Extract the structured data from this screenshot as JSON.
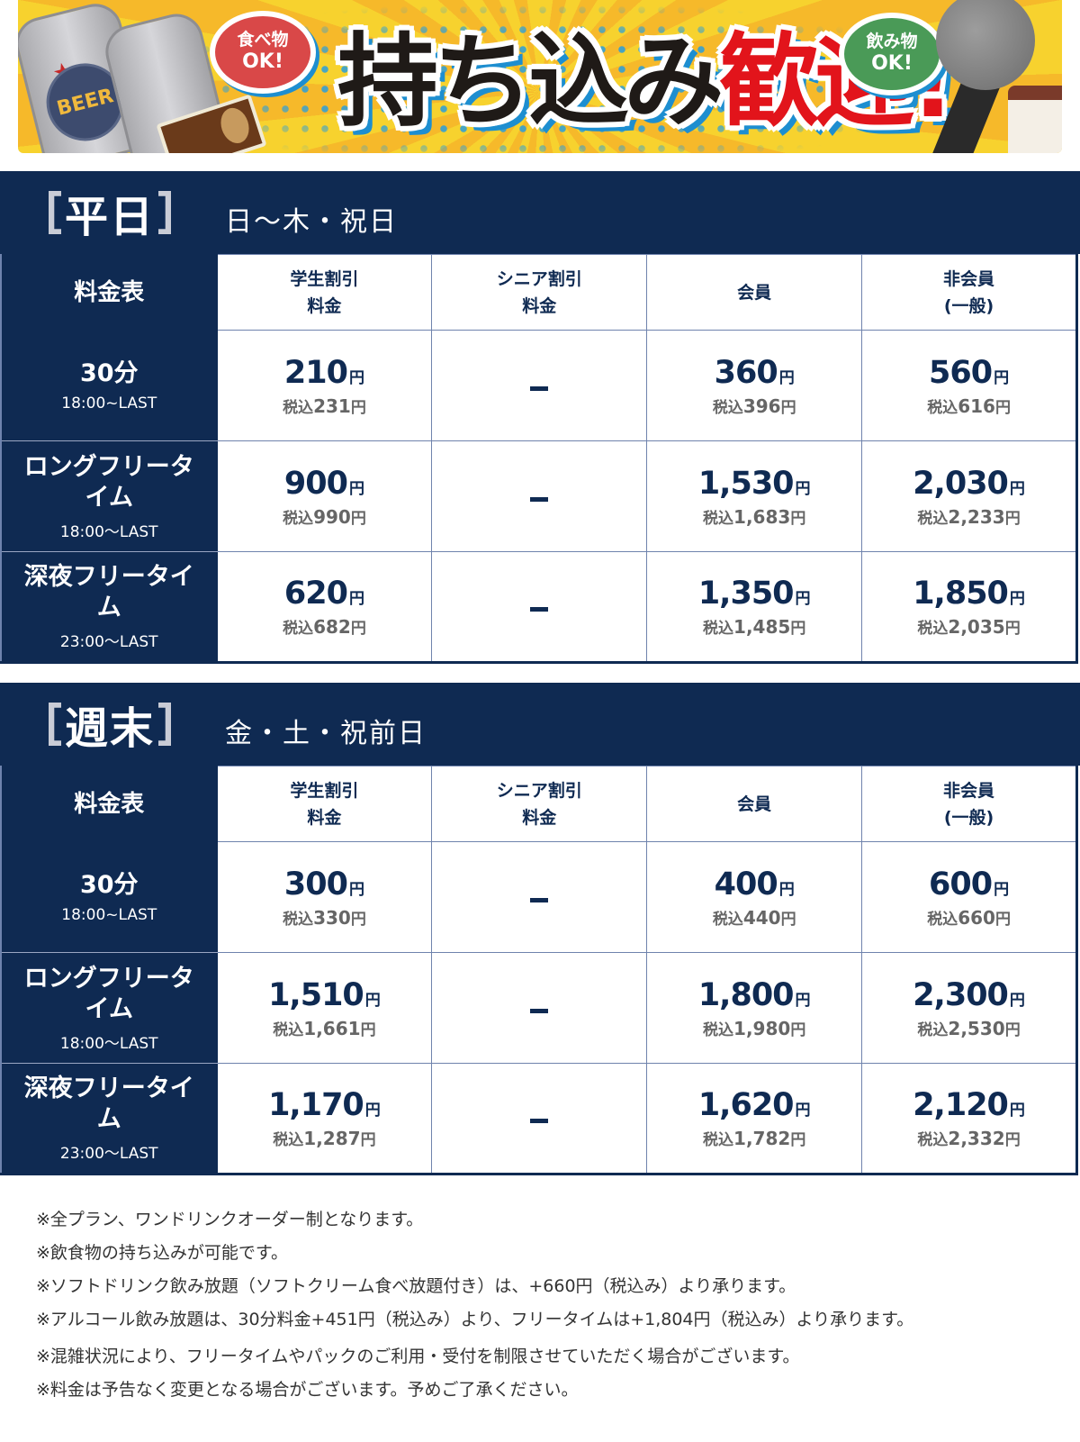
{
  "banner": {
    "headline_black": "持ち込み",
    "headline_red": "歓迎!",
    "food_bubble": {
      "line1": "食べ物",
      "line2": "OK!"
    },
    "drink_bubble": {
      "line1": "飲み物",
      "line2": "OK!"
    },
    "can_label": "BEER",
    "colors": {
      "background": "#f7d22e",
      "red": "#e2141b",
      "blue": "#1d8ed0",
      "green": "#4a9a57"
    }
  },
  "columns": {
    "corner": "料金表",
    "student": {
      "line1": "学生割引",
      "line2": "料金"
    },
    "senior": {
      "line1": "シニア割引",
      "line2": "料金"
    },
    "member": {
      "line1": "会員"
    },
    "nonmember": {
      "line1": "非会員",
      "line2": "(一般)"
    }
  },
  "labels": {
    "yen": "円",
    "tax_prefix": "税込",
    "dash": "–"
  },
  "weekday": {
    "title": "平日",
    "days": "日〜木・祝日",
    "rows": [
      {
        "name": "30分",
        "name2": "",
        "time": "18:00~LAST",
        "student": {
          "price": "210",
          "tax": "231"
        },
        "senior": null,
        "member": {
          "price": "360",
          "tax": "396"
        },
        "nonmember": {
          "price": "560",
          "tax": "616"
        }
      },
      {
        "name": "ロングフリータ",
        "name2": "イム",
        "time": "18:00〜LAST",
        "student": {
          "price": "900",
          "tax": "990"
        },
        "senior": null,
        "member": {
          "price": "1,530",
          "tax": "1,683"
        },
        "nonmember": {
          "price": "2,030",
          "tax": "2,233"
        }
      },
      {
        "name": "深夜フリータイ",
        "name2": "ム",
        "time": "23:00〜LAST",
        "student": {
          "price": "620",
          "tax": "682"
        },
        "senior": null,
        "member": {
          "price": "1,350",
          "tax": "1,485"
        },
        "nonmember": {
          "price": "1,850",
          "tax": "2,035"
        }
      }
    ]
  },
  "weekend": {
    "title": "週末",
    "days": "金・土・祝前日",
    "rows": [
      {
        "name": "30分",
        "name2": "",
        "time": "18:00~LAST",
        "student": {
          "price": "300",
          "tax": "330"
        },
        "senior": null,
        "member": {
          "price": "400",
          "tax": "440"
        },
        "nonmember": {
          "price": "600",
          "tax": "660"
        }
      },
      {
        "name": "ロングフリータ",
        "name2": "イム",
        "time": "18:00〜LAST",
        "student": {
          "price": "1,510",
          "tax": "1,661"
        },
        "senior": null,
        "member": {
          "price": "1,800",
          "tax": "1,980"
        },
        "nonmember": {
          "price": "2,300",
          "tax": "2,530"
        }
      },
      {
        "name": "深夜フリータイ",
        "name2": "ム",
        "time": "23:00〜LAST",
        "student": {
          "price": "1,170",
          "tax": "1,287"
        },
        "senior": null,
        "member": {
          "price": "1,620",
          "tax": "1,782"
        },
        "nonmember": {
          "price": "2,120",
          "tax": "2,332"
        }
      }
    ]
  },
  "notes": [
    "※全プラン、ワンドリンクオーダー制となります。",
    "※飲食物の持ち込みが可能です。",
    "※ソフトドリンク飲み放題（ソフトクリーム食べ放題付き）は、+660円（税込み）より承ります。",
    "※アルコール飲み放題は、30分料金+451円（税込み）より、フリータイムは+1,804円（税込み）より承ります。",
    "※混雑状況により、フリータイムやパックのご利用・受付を制限させていただく場合がございます。",
    "※料金は予告なく変更となる場合がございます。予めご了承ください。"
  ],
  "theme": {
    "navy": "#0f2a52",
    "grid": "#6f83ad",
    "tax_gray": "#666666"
  }
}
